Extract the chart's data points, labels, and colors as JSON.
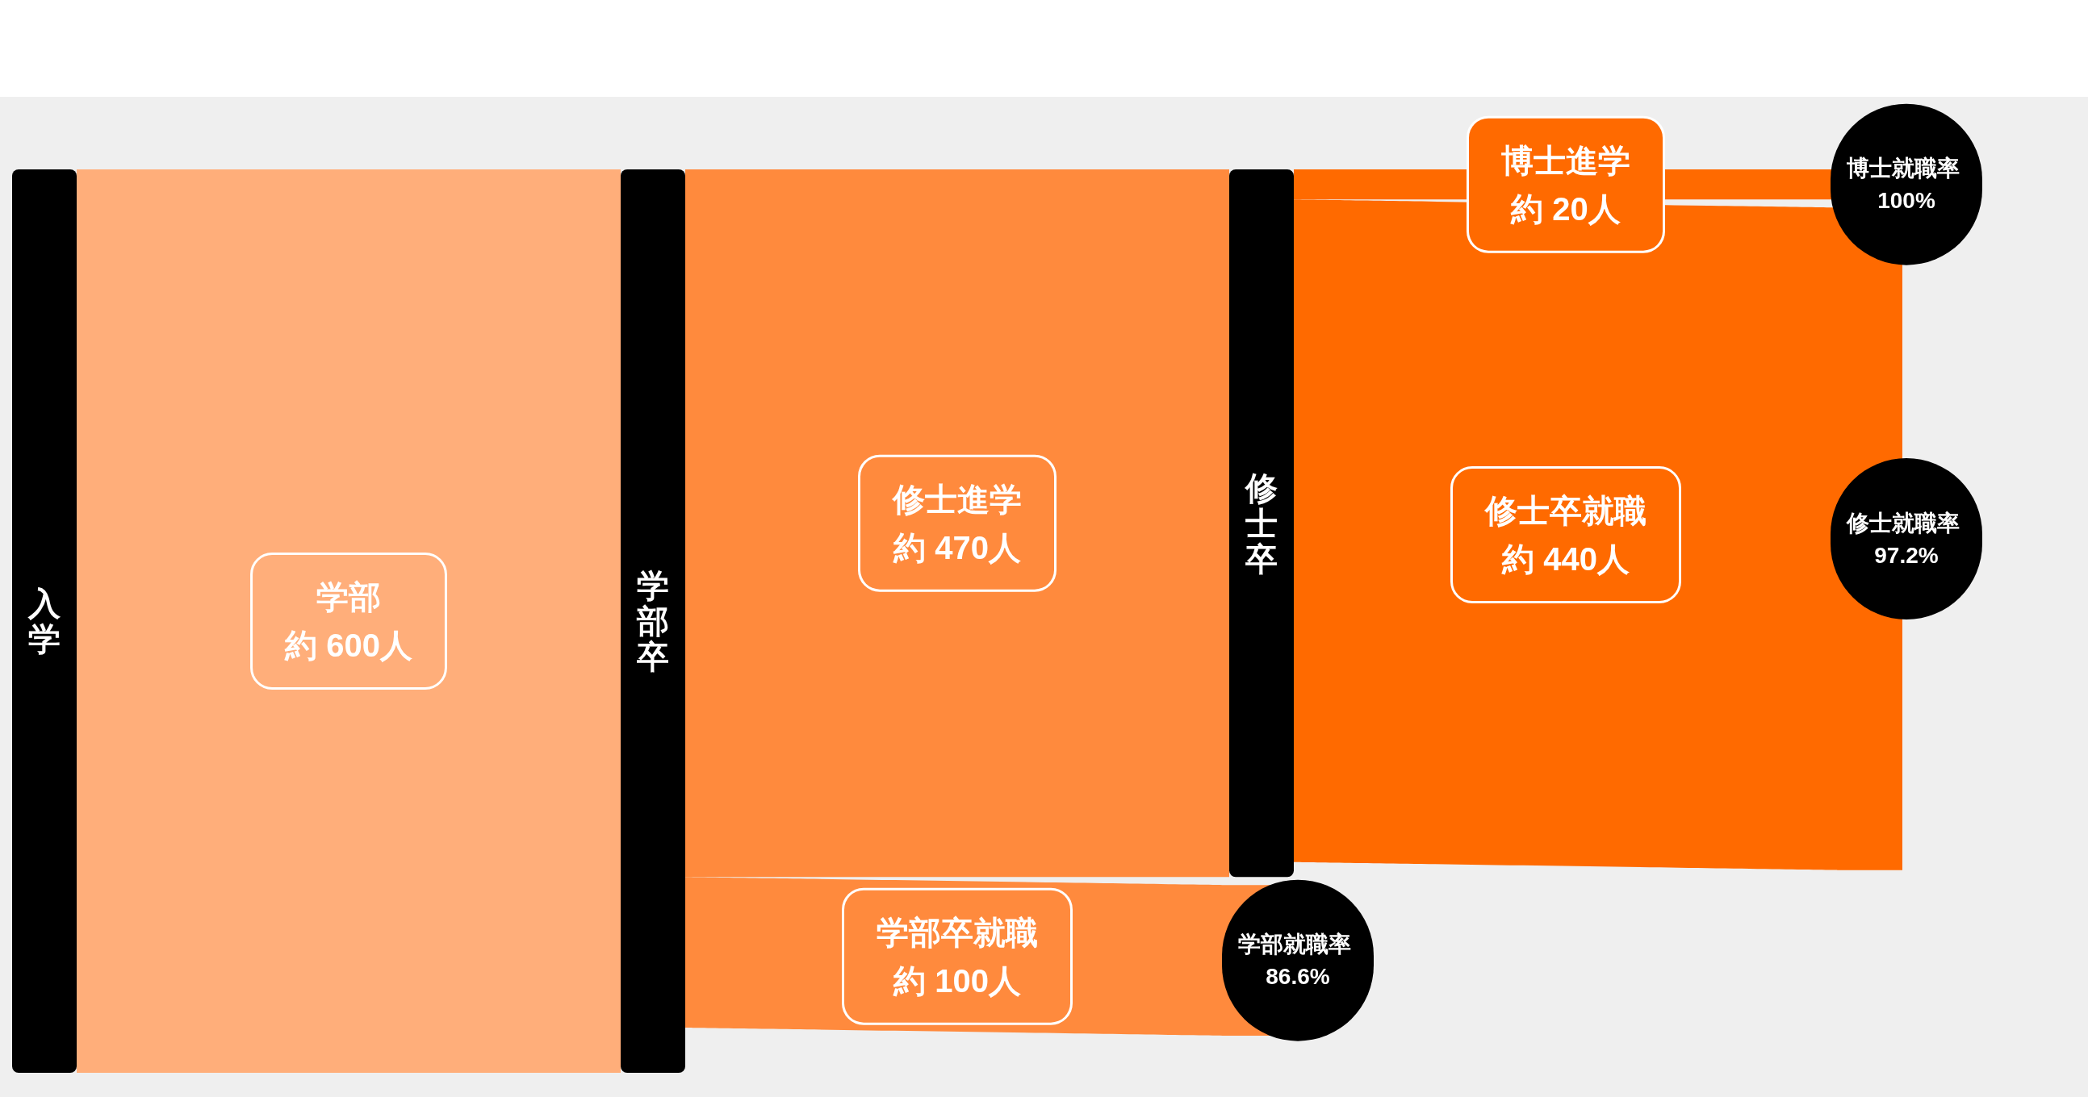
{
  "chart_data": {
    "type": "other",
    "categories": [
      "学部",
      "修士進学",
      "学部卒就職",
      "博士進学",
      "修士卒就職"
    ],
    "values": [
      600,
      470,
      100,
      20,
      440
    ],
    "value_labels": [
      "約 600人",
      "約 470人",
      "約 100人",
      "約 20人",
      "約 440人"
    ],
    "colors": [
      "#ffae7a",
      "#ff8a3d",
      "#ff8a3d",
      "#ff6a00",
      "#ff6a00"
    ],
    "annotations": [
      "入学",
      "学部卒",
      "修士卒",
      "学部就職率 86.6%",
      "博士就職率 100%",
      "修士就職率 97.2%"
    ]
  }
}
